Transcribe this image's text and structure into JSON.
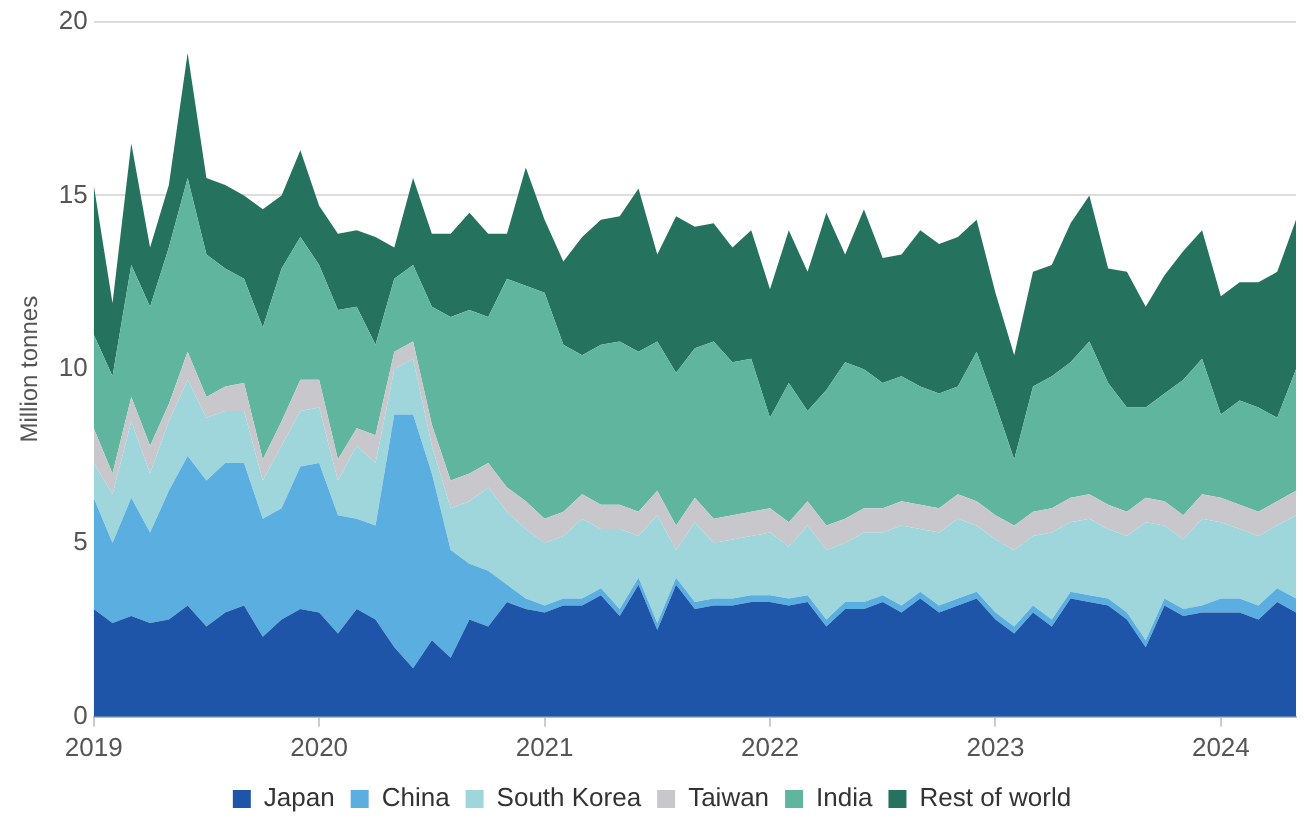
{
  "chart_data": {
    "type": "area",
    "stacked": true,
    "ylabel": "Million tonnes",
    "ylim": [
      0,
      20
    ],
    "yticks": [
      0,
      5,
      10,
      15,
      20
    ],
    "xlim": [
      "2019-01",
      "2024-05"
    ],
    "xticks": [
      "2019",
      "2020",
      "2021",
      "2022",
      "2023",
      "2024"
    ],
    "grid": "y",
    "legend": "bottom",
    "x": [
      "2019-01",
      "2019-02",
      "2019-03",
      "2019-04",
      "2019-05",
      "2019-06",
      "2019-07",
      "2019-08",
      "2019-09",
      "2019-10",
      "2019-11",
      "2019-12",
      "2020-01",
      "2020-02",
      "2020-03",
      "2020-04",
      "2020-05",
      "2020-06",
      "2020-07",
      "2020-08",
      "2020-09",
      "2020-10",
      "2020-11",
      "2020-12",
      "2021-01",
      "2021-02",
      "2021-03",
      "2021-04",
      "2021-05",
      "2021-06",
      "2021-07",
      "2021-08",
      "2021-09",
      "2021-10",
      "2021-11",
      "2021-12",
      "2022-01",
      "2022-02",
      "2022-03",
      "2022-04",
      "2022-05",
      "2022-06",
      "2022-07",
      "2022-08",
      "2022-09",
      "2022-10",
      "2022-11",
      "2022-12",
      "2023-01",
      "2023-02",
      "2023-03",
      "2023-04",
      "2023-05",
      "2023-06",
      "2023-07",
      "2023-08",
      "2023-09",
      "2023-10",
      "2023-11",
      "2023-12",
      "2024-01",
      "2024-02",
      "2024-03",
      "2024-04",
      "2024-05"
    ],
    "series": [
      {
        "name": "Japan",
        "color": "#1f55a8",
        "values": [
          3.1,
          2.7,
          2.9,
          2.7,
          2.8,
          3.2,
          2.6,
          3.0,
          3.2,
          2.3,
          2.8,
          3.1,
          3.0,
          2.4,
          3.1,
          2.8,
          2.0,
          1.4,
          2.2,
          1.7,
          2.8,
          2.6,
          3.3,
          3.1,
          3.0,
          3.2,
          3.2,
          3.5,
          2.9,
          3.8,
          2.5,
          3.8,
          3.1,
          3.2,
          3.2,
          3.3,
          3.3,
          3.2,
          3.3,
          2.6,
          3.1,
          3.1,
          3.3,
          3.0,
          3.4,
          3.0,
          3.2,
          3.4,
          2.8,
          2.4,
          3.0,
          2.6,
          3.4,
          3.3,
          3.2,
          2.8,
          2.0,
          3.2,
          2.9,
          3.0,
          3.0,
          3.0,
          2.8,
          3.3,
          3.0
        ]
      },
      {
        "name": "China",
        "color": "#5aaee0",
        "values": [
          3.2,
          2.3,
          3.4,
          2.6,
          3.7,
          4.3,
          4.2,
          4.3,
          4.1,
          3.4,
          3.2,
          4.1,
          4.3,
          3.4,
          2.6,
          2.7,
          6.7,
          7.3,
          4.8,
          3.1,
          1.6,
          1.6,
          0.5,
          0.3,
          0.2,
          0.2,
          0.2,
          0.2,
          0.2,
          0.2,
          0.2,
          0.2,
          0.2,
          0.2,
          0.2,
          0.2,
          0.2,
          0.2,
          0.2,
          0.2,
          0.2,
          0.2,
          0.2,
          0.2,
          0.2,
          0.2,
          0.2,
          0.2,
          0.2,
          0.2,
          0.2,
          0.2,
          0.2,
          0.2,
          0.2,
          0.2,
          0.2,
          0.2,
          0.2,
          0.2,
          0.4,
          0.4,
          0.4,
          0.4,
          0.4
        ]
      },
      {
        "name": "South Korea",
        "color": "#9fd6dc",
        "values": [
          1.0,
          1.4,
          2.2,
          1.7,
          2.0,
          2.2,
          1.8,
          1.5,
          1.5,
          1.1,
          1.8,
          1.6,
          1.6,
          1.0,
          2.1,
          1.8,
          1.3,
          1.6,
          0.8,
          1.2,
          1.8,
          2.4,
          2.1,
          2.0,
          1.8,
          1.8,
          2.3,
          1.7,
          2.3,
          1.2,
          3.1,
          0.8,
          2.3,
          1.6,
          1.7,
          1.7,
          1.8,
          1.5,
          2.0,
          2.0,
          1.7,
          2.0,
          1.8,
          2.3,
          1.8,
          2.1,
          2.3,
          1.9,
          2.1,
          2.2,
          2.0,
          2.5,
          2.0,
          2.2,
          2.0,
          2.2,
          3.4,
          2.1,
          2.0,
          2.5,
          2.2,
          2.0,
          2.0,
          1.8,
          2.4
        ]
      },
      {
        "name": "Taiwan",
        "color": "#c8c8cc",
        "values": [
          1.0,
          0.6,
          0.7,
          0.8,
          0.5,
          0.8,
          0.6,
          0.7,
          0.8,
          0.6,
          0.7,
          0.9,
          0.8,
          0.6,
          0.5,
          0.8,
          0.5,
          0.5,
          0.6,
          0.8,
          0.8,
          0.7,
          0.7,
          0.8,
          0.7,
          0.7,
          0.7,
          0.7,
          0.7,
          0.7,
          0.7,
          0.7,
          0.7,
          0.7,
          0.7,
          0.7,
          0.7,
          0.7,
          0.7,
          0.7,
          0.7,
          0.7,
          0.7,
          0.7,
          0.7,
          0.7,
          0.7,
          0.7,
          0.7,
          0.7,
          0.7,
          0.7,
          0.7,
          0.7,
          0.7,
          0.7,
          0.7,
          0.7,
          0.7,
          0.7,
          0.7,
          0.7,
          0.7,
          0.7,
          0.7
        ]
      },
      {
        "name": "India",
        "color": "#5fb59e",
        "values": [
          2.7,
          2.8,
          3.8,
          4.0,
          4.5,
          5.0,
          4.1,
          3.4,
          3.0,
          3.8,
          4.4,
          4.1,
          3.3,
          4.3,
          3.5,
          2.6,
          2.1,
          2.2,
          3.4,
          4.7,
          4.7,
          4.2,
          6.0,
          6.2,
          6.5,
          4.8,
          4.0,
          4.6,
          4.7,
          4.6,
          4.3,
          4.4,
          4.3,
          5.1,
          4.4,
          4.4,
          2.6,
          4.0,
          2.6,
          3.9,
          4.5,
          4.0,
          3.6,
          3.6,
          3.4,
          3.3,
          3.1,
          4.3,
          3.2,
          1.9,
          3.6,
          3.8,
          3.9,
          4.4,
          3.5,
          3.0,
          2.6,
          3.1,
          3.9,
          3.9,
          2.4,
          3.0,
          3.0,
          2.4,
          3.5
        ]
      },
      {
        "name": "Rest of world",
        "color": "#25735f",
        "values": [
          4.3,
          2.1,
          3.5,
          1.7,
          1.8,
          3.6,
          2.2,
          2.4,
          2.4,
          3.4,
          2.1,
          2.5,
          1.7,
          2.2,
          2.2,
          3.1,
          0.9,
          2.5,
          2.1,
          2.4,
          2.8,
          2.4,
          1.3,
          3.4,
          2.1,
          2.4,
          3.4,
          3.6,
          3.6,
          4.7,
          2.5,
          4.5,
          3.5,
          3.4,
          3.3,
          3.7,
          3.7,
          4.4,
          4.0,
          5.1,
          3.1,
          4.6,
          3.6,
          3.5,
          4.5,
          4.3,
          4.3,
          3.8,
          3.2,
          3.0,
          3.3,
          3.2,
          4.0,
          4.2,
          3.3,
          3.9,
          2.9,
          3.4,
          3.7,
          3.7,
          3.4,
          3.4,
          3.6,
          4.2,
          4.3
        ]
      }
    ]
  }
}
